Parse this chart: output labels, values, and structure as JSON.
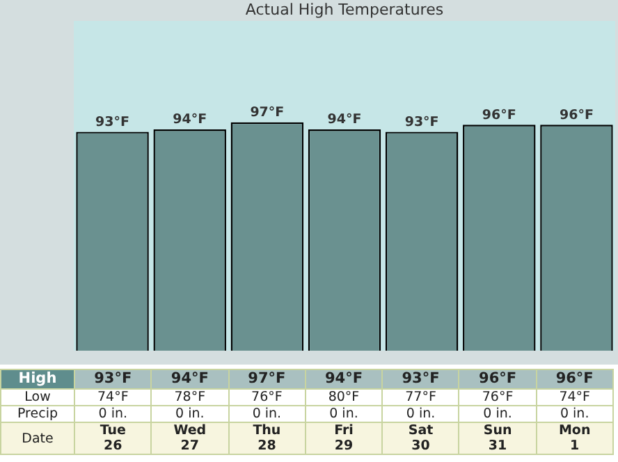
{
  "chart_data": {
    "type": "bar",
    "title": "Actual High Temperatures",
    "categories": [
      "Tue 26",
      "Wed 27",
      "Thu 28",
      "Fri 29",
      "Sat 30",
      "Sun 31",
      "Mon 1"
    ],
    "values": [
      93,
      94,
      97,
      94,
      93,
      96,
      96
    ],
    "value_labels": [
      "93°F",
      "94°F",
      "97°F",
      "94°F",
      "93°F",
      "96°F",
      "96°F"
    ],
    "color": "#6a9190",
    "annotations": [
      "High",
      "Low",
      "Precip",
      "Date",
      "74°F",
      "78°F",
      "76°F",
      "80°F",
      "77°F",
      "76°F",
      "74°F",
      "0 in.",
      "0 in.",
      "0 in.",
      "0 in.",
      "0 in.",
      "0 in.",
      "0 in."
    ]
  }
}
